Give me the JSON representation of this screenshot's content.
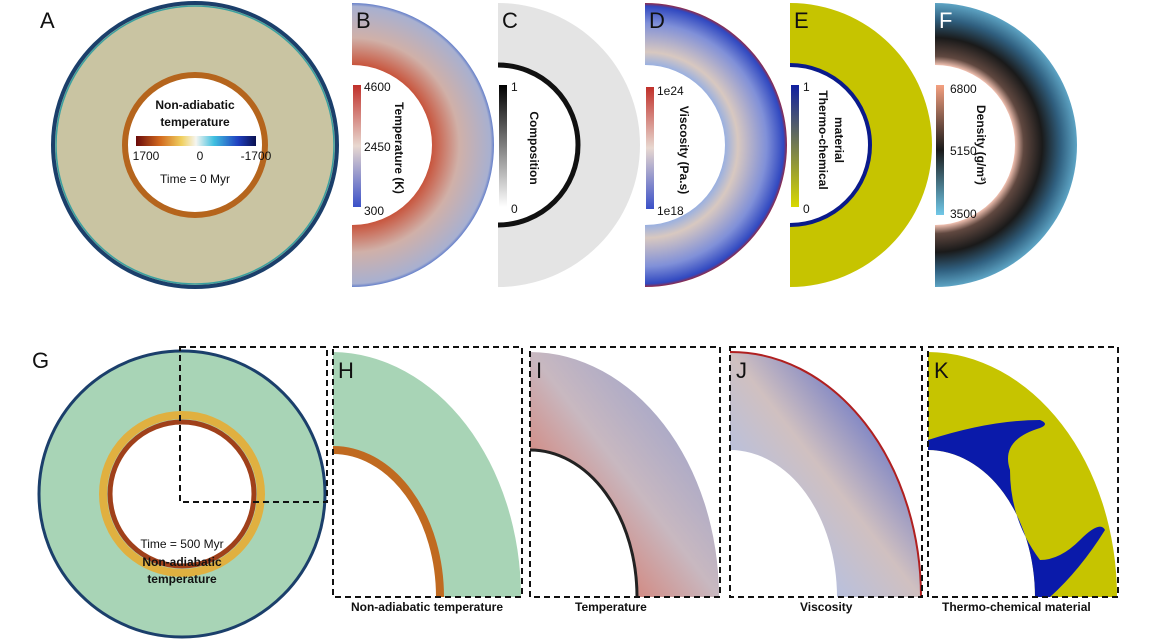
{
  "panels": {
    "a": {
      "letter": "A",
      "title_lines": [
        "Non-adiabatic",
        "temperature"
      ],
      "ticks": [
        "1700",
        "0",
        "-1700"
      ],
      "time": "Time = 0 Myr"
    },
    "b": {
      "letter": "B",
      "label": "Temperature (K)",
      "ticks": [
        "4600",
        "2450",
        "300"
      ]
    },
    "c": {
      "letter": "C",
      "label": "Composition",
      "ticks": [
        "1",
        "0"
      ]
    },
    "d": {
      "letter": "D",
      "label": "Viscosity (Pa.s)",
      "ticks": [
        "1e24",
        "1e18"
      ]
    },
    "e": {
      "letter": "E",
      "label_lines": [
        "Thermo-chemical",
        "material"
      ],
      "ticks": [
        "1",
        "0"
      ]
    },
    "f": {
      "letter": "F",
      "label": "Density (g/m³)",
      "ticks": [
        "6800",
        "5150",
        "3500"
      ]
    },
    "g": {
      "letter": "G",
      "time": "Time = 500 Myr",
      "title_lines": [
        "Non-adiabatic",
        "temperature"
      ]
    },
    "h": {
      "letter": "H",
      "caption": "Non-adiabatic temperature"
    },
    "i": {
      "letter": "I",
      "caption": "Temperature"
    },
    "j": {
      "letter": "J",
      "caption": "Viscosity"
    },
    "k": {
      "letter": "K",
      "caption": "Thermo-chemical material"
    }
  }
}
